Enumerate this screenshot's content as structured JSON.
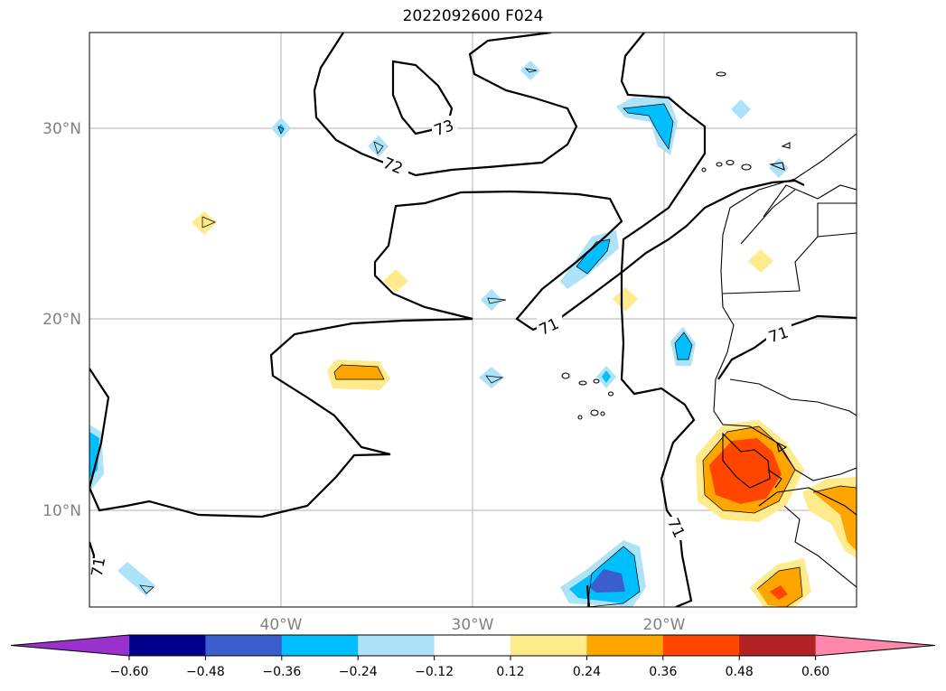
{
  "title": "2022092600 F024",
  "map": {
    "lat_labels": [
      "30°N",
      "20°N",
      "10°N"
    ],
    "lon_labels": [
      "40°W",
      "30°W",
      "20°W"
    ],
    "contour_labels": [
      "73",
      "72",
      "71",
      "71",
      "71",
      "71"
    ]
  },
  "colorbar": {
    "ticks": [
      "−0.60",
      "−0.48",
      "−0.36",
      "−0.24",
      "−0.12",
      "0.12",
      "0.24",
      "0.36",
      "0.48",
      "0.60"
    ],
    "colors": [
      "#9932cc",
      "#00008b",
      "#3a5fcd",
      "#00bfff",
      "#ade3f8",
      "#ffffff",
      "#ffea8c",
      "#ffa500",
      "#ff4500",
      "#b22222",
      "#ff88aa"
    ]
  }
}
